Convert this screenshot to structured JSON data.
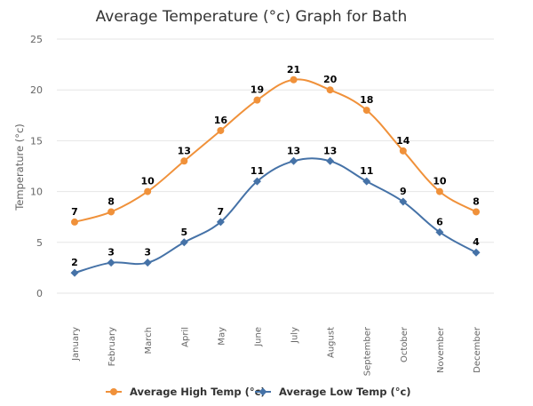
{
  "chart_data": {
    "type": "line",
    "title": "Average Temperature (°c) Graph for Bath",
    "xlabel": "",
    "ylabel": "Temperature (°c)",
    "ylim": [
      0,
      25
    ],
    "yticks": [
      "0",
      "5",
      "10",
      "15",
      "20",
      "25"
    ],
    "grid": true,
    "legend": "bottom",
    "categories": [
      "January",
      "February",
      "March",
      "April",
      "May",
      "June",
      "July",
      "August",
      "September",
      "October",
      "November",
      "December"
    ],
    "series": [
      {
        "name": "Average High Temp (°c)",
        "color": "#f0913a",
        "marker": "circle",
        "values": [
          7,
          8,
          10,
          13,
          16,
          19,
          21,
          20,
          18,
          14,
          10,
          8
        ]
      },
      {
        "name": "Average Low Temp (°c)",
        "color": "#4572a7",
        "marker": "diamond",
        "values": [
          2,
          3,
          3,
          5,
          7,
          11,
          13,
          13,
          11,
          9,
          6,
          4
        ]
      }
    ]
  }
}
